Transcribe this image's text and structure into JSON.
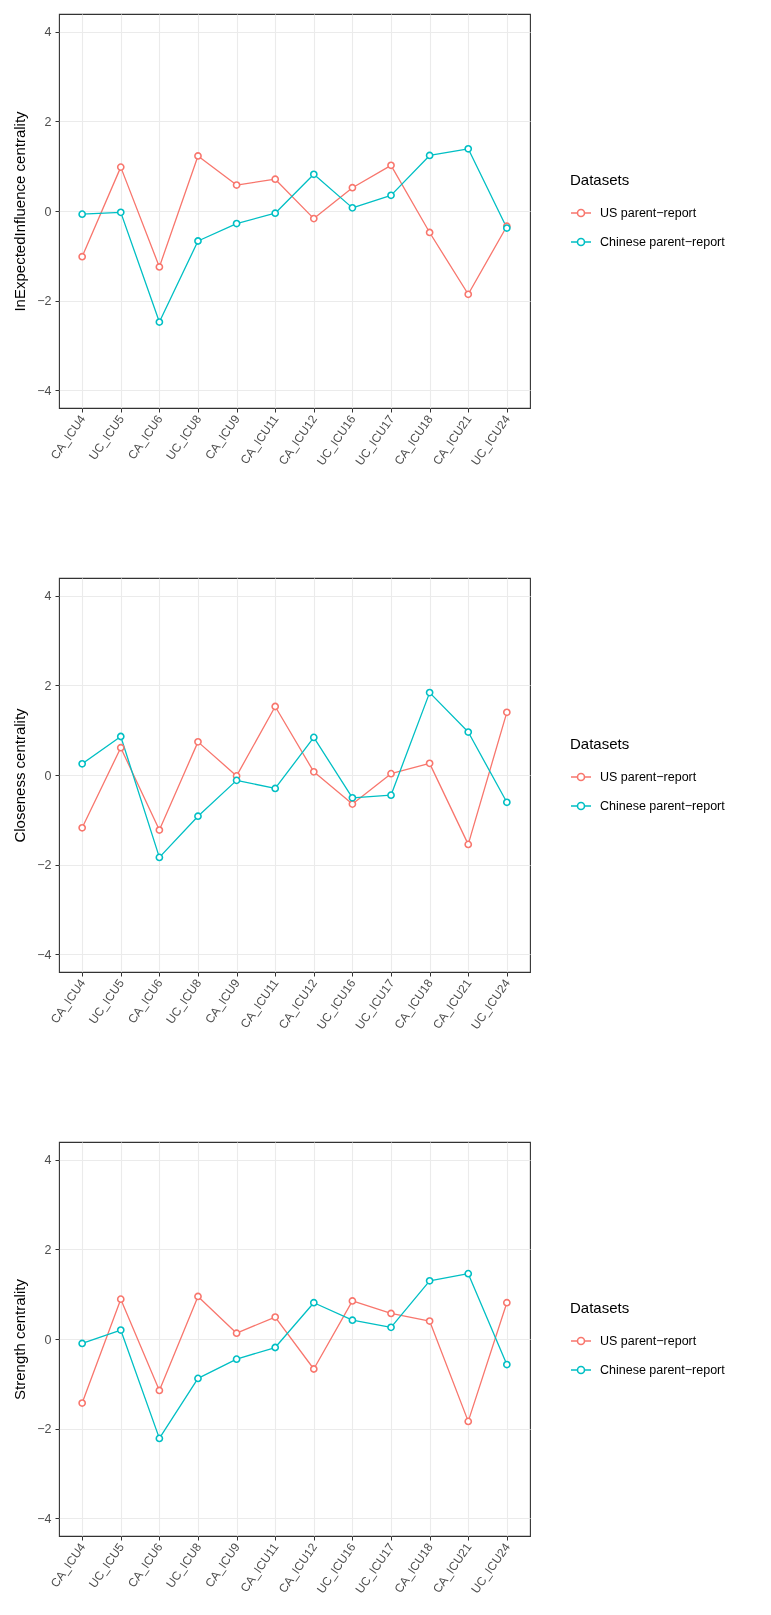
{
  "chart_data": [
    {
      "type": "line",
      "ylabel": "InExpectedInfluence centrality",
      "legend_title": "Datasets",
      "legend": "right",
      "grid": true,
      "marker": "circle",
      "categories": [
        "CA_ICU4",
        "UC_ICU5",
        "CA_ICU6",
        "UC_ICU8",
        "CA_ICU9",
        "CA_ICU11",
        "CA_ICU12",
        "UC_ICU16",
        "UC_ICU17",
        "CA_ICU18",
        "CA_ICU21",
        "UC_ICU24"
      ],
      "ylim": [
        -4.4,
        4.4
      ],
      "yticks": [
        -4,
        -2,
        0,
        2,
        4
      ],
      "series": [
        {
          "name": "US parent−report",
          "color": "#f8766d",
          "values": [
            -1.02,
            0.98,
            -1.25,
            1.23,
            0.58,
            0.71,
            -0.17,
            0.52,
            1.02,
            -0.48,
            -1.86,
            -0.34
          ]
        },
        {
          "name": "Chinese parent−report",
          "color": "#00bfc4",
          "values": [
            -0.07,
            -0.03,
            -2.48,
            -0.67,
            -0.28,
            -0.05,
            0.82,
            0.07,
            0.35,
            1.24,
            1.39,
            -0.38
          ]
        }
      ]
    },
    {
      "type": "line",
      "ylabel": "Closeness centrality",
      "legend_title": "Datasets",
      "legend": "right",
      "grid": true,
      "marker": "circle",
      "categories": [
        "CA_ICU4",
        "UC_ICU5",
        "CA_ICU6",
        "UC_ICU8",
        "CA_ICU9",
        "CA_ICU11",
        "CA_ICU12",
        "UC_ICU16",
        "UC_ICU17",
        "CA_ICU18",
        "CA_ICU21",
        "UC_ICU24"
      ],
      "ylim": [
        -4.4,
        4.4
      ],
      "yticks": [
        -4,
        -2,
        0,
        2,
        4
      ],
      "series": [
        {
          "name": "US parent−report",
          "color": "#f8766d",
          "values": [
            -1.18,
            0.61,
            -1.23,
            0.74,
            -0.02,
            1.53,
            0.07,
            -0.65,
            0.03,
            0.26,
            -1.55,
            1.4
          ]
        },
        {
          "name": "Chinese parent−report",
          "color": "#00bfc4",
          "values": [
            0.25,
            0.86,
            -1.84,
            -0.92,
            -0.12,
            -0.3,
            0.84,
            -0.51,
            -0.45,
            1.84,
            0.96,
            -0.61
          ]
        }
      ]
    },
    {
      "type": "line",
      "ylabel": "Strength centrality",
      "legend_title": "Datasets",
      "legend": "right",
      "grid": true,
      "marker": "circle",
      "categories": [
        "CA_ICU4",
        "UC_ICU5",
        "CA_ICU6",
        "UC_ICU8",
        "CA_ICU9",
        "CA_ICU11",
        "CA_ICU12",
        "UC_ICU16",
        "UC_ICU17",
        "CA_ICU18",
        "CA_ICU21",
        "UC_ICU24"
      ],
      "ylim": [
        -4.4,
        4.4
      ],
      "yticks": [
        -4,
        -2,
        0,
        2,
        4
      ],
      "series": [
        {
          "name": "US parent−report",
          "color": "#f8766d",
          "values": [
            -1.43,
            0.89,
            -1.15,
            0.95,
            0.13,
            0.49,
            -0.67,
            0.85,
            0.57,
            0.4,
            -1.84,
            0.81
          ]
        },
        {
          "name": "Chinese parent−report",
          "color": "#00bfc4",
          "values": [
            -0.1,
            0.2,
            -2.22,
            -0.88,
            -0.45,
            -0.19,
            0.81,
            0.42,
            0.26,
            1.3,
            1.46,
            -0.57
          ]
        }
      ]
    }
  ]
}
